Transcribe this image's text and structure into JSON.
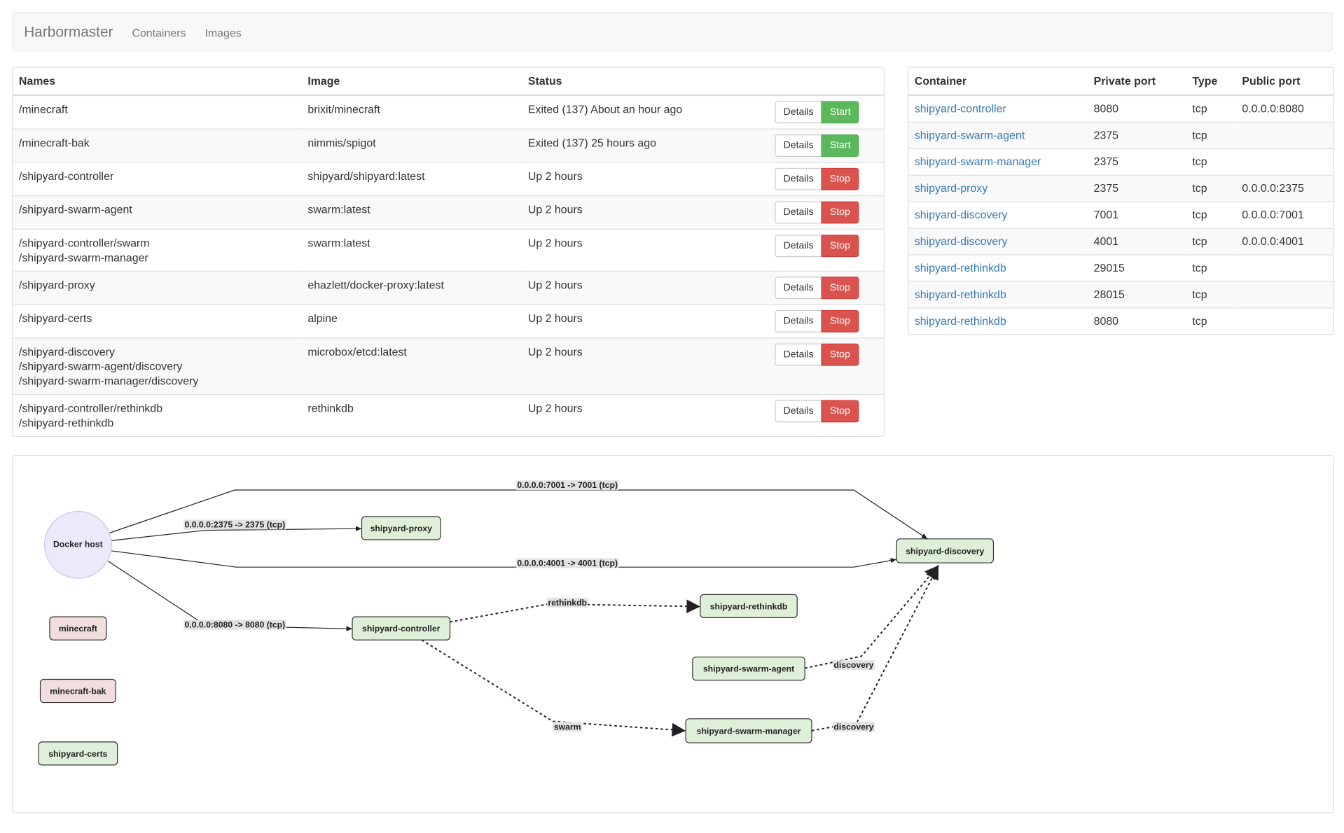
{
  "navbar": {
    "brand": "Harbormaster",
    "links": [
      "Containers",
      "Images"
    ]
  },
  "containers_table": {
    "headers": [
      "Names",
      "Image",
      "Status"
    ],
    "rows": [
      {
        "names": [
          "/minecraft"
        ],
        "image": "brixit/minecraft",
        "status": "Exited (137) About an hour ago",
        "actions": [
          "Details",
          "Start"
        ]
      },
      {
        "names": [
          "/minecraft-bak"
        ],
        "image": "nimmis/spigot",
        "status": "Exited (137) 25 hours ago",
        "actions": [
          "Details",
          "Start"
        ]
      },
      {
        "names": [
          "/shipyard-controller"
        ],
        "image": "shipyard/shipyard:latest",
        "status": "Up 2 hours",
        "actions": [
          "Details",
          "Stop"
        ]
      },
      {
        "names": [
          "/shipyard-swarm-agent"
        ],
        "image": "swarm:latest",
        "status": "Up 2 hours",
        "actions": [
          "Details",
          "Stop"
        ]
      },
      {
        "names": [
          "/shipyard-controller/swarm",
          "/shipyard-swarm-manager"
        ],
        "image": "swarm:latest",
        "status": "Up 2 hours",
        "actions": [
          "Details",
          "Stop"
        ]
      },
      {
        "names": [
          "/shipyard-proxy"
        ],
        "image": "ehazlett/docker-proxy:latest",
        "status": "Up 2 hours",
        "actions": [
          "Details",
          "Stop"
        ]
      },
      {
        "names": [
          "/shipyard-certs"
        ],
        "image": "alpine",
        "status": "Up 2 hours",
        "actions": [
          "Details",
          "Stop"
        ]
      },
      {
        "names": [
          "/shipyard-discovery",
          "/shipyard-swarm-agent/discovery",
          "/shipyard-swarm-manager/discovery"
        ],
        "image": "microbox/etcd:latest",
        "status": "Up 2 hours",
        "actions": [
          "Details",
          "Stop"
        ]
      },
      {
        "names": [
          "/shipyard-controller/rethinkdb",
          "/shipyard-rethinkdb"
        ],
        "image": "rethinkdb",
        "status": "Up 2 hours",
        "actions": [
          "Details",
          "Stop"
        ]
      }
    ]
  },
  "ports_table": {
    "headers": [
      "Container",
      "Private port",
      "Type",
      "Public port"
    ],
    "rows": [
      {
        "container": "shipyard-controller",
        "private_port": "8080",
        "type": "tcp",
        "public_port": "0.0.0.0:8080"
      },
      {
        "container": "shipyard-swarm-agent",
        "private_port": "2375",
        "type": "tcp"
      },
      {
        "container": "shipyard-swarm-manager",
        "private_port": "2375",
        "type": "tcp"
      },
      {
        "container": "shipyard-proxy",
        "private_port": "2375",
        "type": "tcp",
        "public_port": "0.0.0.0:2375"
      },
      {
        "container": "shipyard-discovery",
        "private_port": "7001",
        "type": "tcp",
        "public_port": "0.0.0.0:7001"
      },
      {
        "container": "shipyard-discovery",
        "private_port": "4001",
        "type": "tcp",
        "public_port": "0.0.0.0:4001"
      },
      {
        "container": "shipyard-rethinkdb",
        "private_port": "29015",
        "type": "tcp"
      },
      {
        "container": "shipyard-rethinkdb",
        "private_port": "28015",
        "type": "tcp"
      },
      {
        "container": "shipyard-rethinkdb",
        "private_port": "8080",
        "type": "tcp"
      }
    ]
  },
  "graph": {
    "nodes": [
      {
        "label": "Docker host"
      },
      {
        "label": "shipyard-proxy"
      },
      {
        "label": "shipyard-discovery"
      },
      {
        "label": "shipyard-rethinkdb"
      },
      {
        "label": "shipyard-controller"
      },
      {
        "label": "minecraft"
      },
      {
        "label": "shipyard-swarm-agent"
      },
      {
        "label": "minecraft-bak"
      },
      {
        "label": "shipyard-swarm-manager"
      },
      {
        "label": "shipyard-certs"
      }
    ],
    "edges": [
      {
        "label": "0.0.0.0:7001 -> 7001 (tcp)"
      },
      {
        "label": "0.0.0.0:2375 -> 2375 (tcp)"
      },
      {
        "label": "0.0.0.0:4001 -> 4001 (tcp)"
      },
      {
        "label": "0.0.0.0:8080 -> 8080 (tcp)"
      },
      {
        "label": "rethinkdb"
      },
      {
        "label": "swarm"
      },
      {
        "label": "discovery"
      },
      {
        "label": "discovery"
      }
    ]
  }
}
